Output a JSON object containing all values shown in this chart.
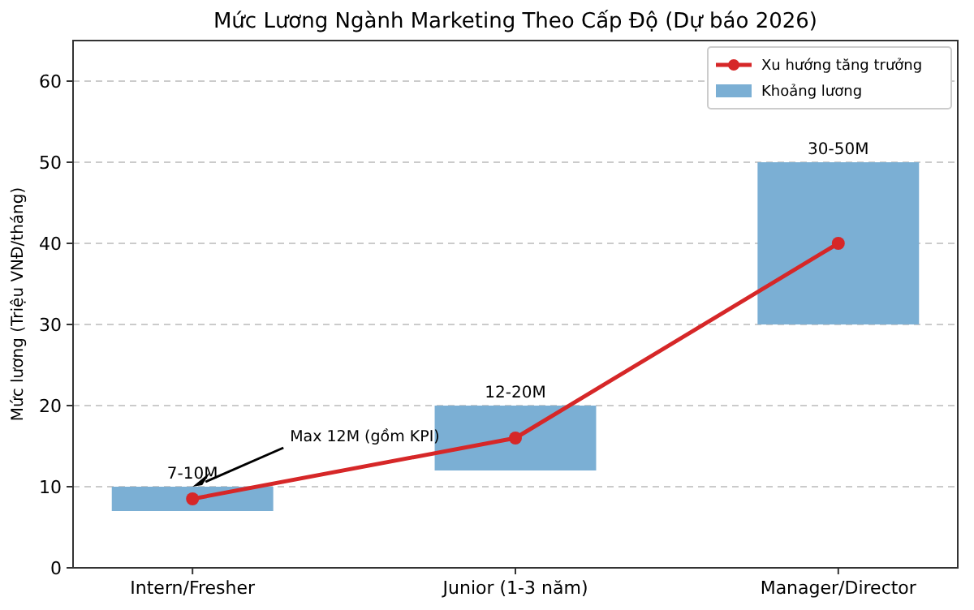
{
  "chart_data": {
    "type": "bar",
    "title": "Mức Lương Ngành Marketing Theo Cấp Độ (Dự báo 2026)",
    "ylabel": "Mức lương (Triệu VNĐ/tháng)",
    "categories": [
      "Intern/Fresher",
      "Junior (1-3 năm)",
      "Manager/Director"
    ],
    "series": [
      {
        "name": "Khoảng lương",
        "color": "#7bafd4",
        "values": [
          3,
          8,
          20
        ],
        "base": [
          7,
          12,
          30
        ],
        "value_labels": [
          "7-10M",
          "12-20M",
          "30-50M"
        ]
      },
      {
        "name": "Xu hướng tăng trưởng",
        "type": "line",
        "color": "#d62728",
        "values": [
          8.5,
          16,
          40
        ],
        "marker": "circle",
        "line_style": "solid"
      }
    ],
    "ylim": [
      0,
      65
    ],
    "yticks": [
      0,
      10,
      20,
      30,
      40,
      50,
      60
    ],
    "grid": "y",
    "legend": "top right",
    "annotations": [
      {
        "text": "Max 12M (gồm KPI)",
        "x": "Intern/Fresher",
        "y": 10
      }
    ]
  }
}
